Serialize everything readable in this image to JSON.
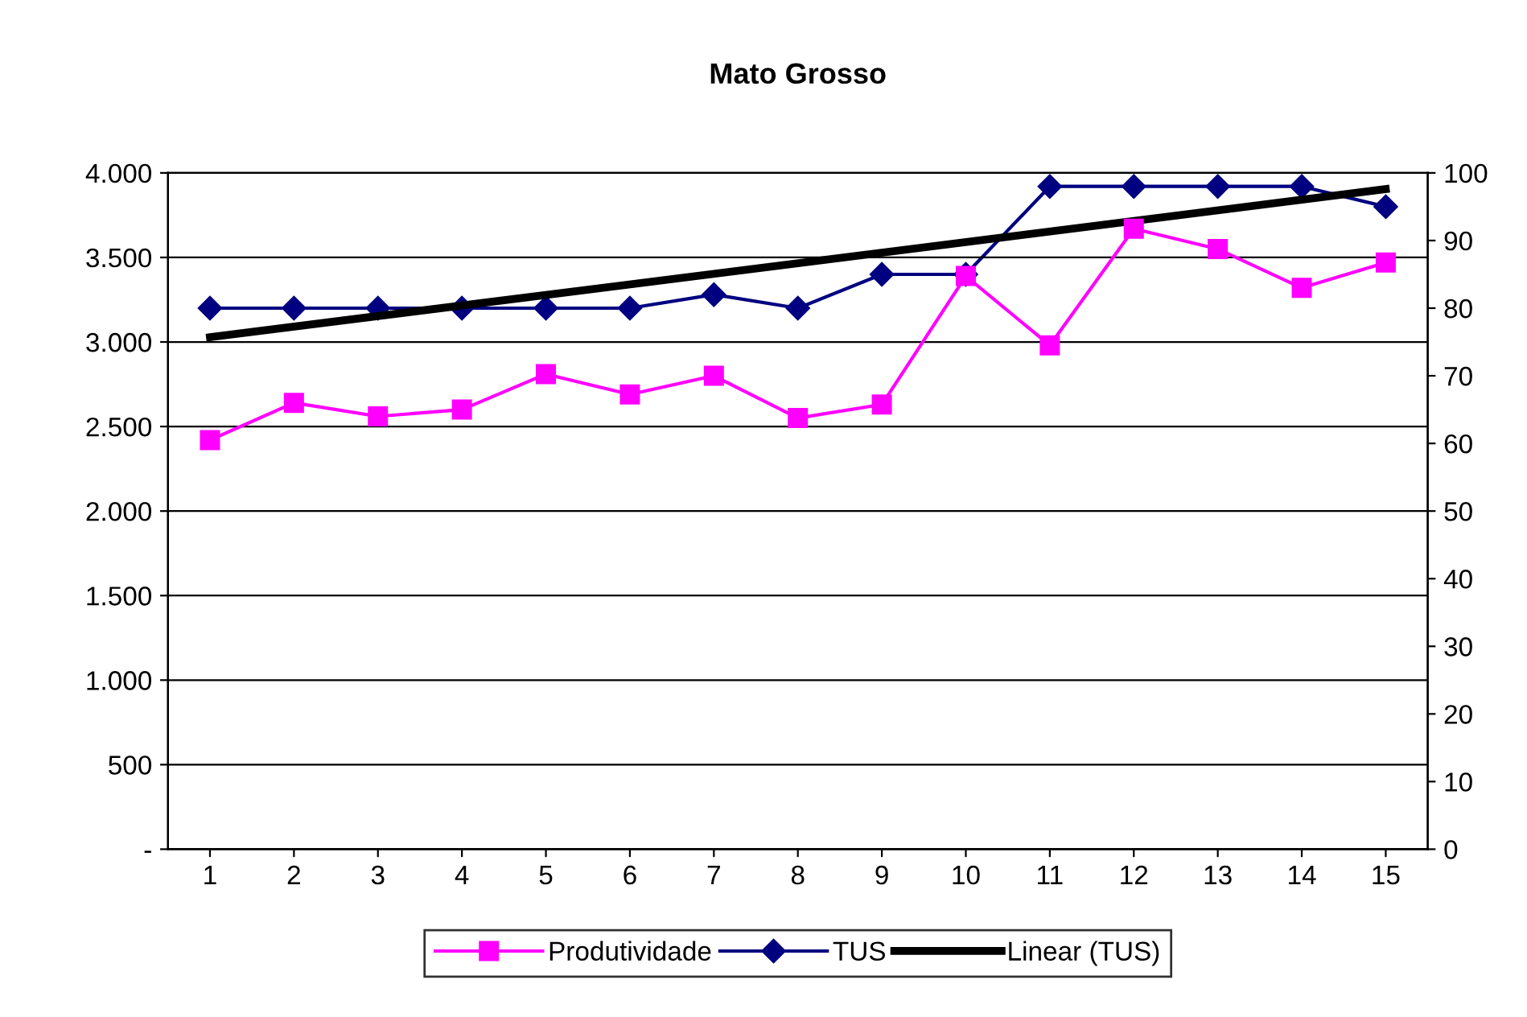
{
  "chart_data": {
    "type": "line",
    "title": "Mato Grosso",
    "x": [
      1,
      2,
      3,
      4,
      5,
      6,
      7,
      8,
      9,
      10,
      11,
      12,
      13,
      14,
      15
    ],
    "xlim": [
      0.5,
      15.5
    ],
    "xticks": [
      1,
      2,
      3,
      4,
      5,
      6,
      7,
      8,
      9,
      10,
      11,
      12,
      13,
      14,
      15
    ],
    "ylim": [
      0,
      4000
    ],
    "yticks": [
      {
        "value": 0,
        "label": "-"
      },
      {
        "value": 500,
        "label": "500"
      },
      {
        "value": 1000,
        "label": "1.000"
      },
      {
        "value": 1500,
        "label": "1.500"
      },
      {
        "value": 2000,
        "label": "2.000"
      },
      {
        "value": 2500,
        "label": "2.500"
      },
      {
        "value": 3000,
        "label": "3.000"
      },
      {
        "value": 3500,
        "label": "3.500"
      },
      {
        "value": 4000,
        "label": "4.000"
      }
    ],
    "y2lim": [
      0,
      100
    ],
    "y2ticks": [
      0,
      10,
      20,
      30,
      40,
      50,
      60,
      70,
      80,
      90,
      100
    ],
    "grid": "y",
    "legend": "bottom",
    "series": [
      {
        "name": "Produtividade",
        "color": "#ff00ff",
        "marker": "square",
        "values": [
          2420,
          2640,
          2560,
          2600,
          2810,
          2690,
          2800,
          2550,
          2630,
          3390,
          2980,
          3670,
          3550,
          3320,
          3470
        ]
      },
      {
        "name": "TUS",
        "color": "#000080",
        "marker": "diamond",
        "axis": "y2",
        "values": [
          80,
          80,
          80,
          80,
          80,
          80,
          82,
          80,
          85,
          85,
          98,
          98,
          98,
          98,
          95
        ]
      },
      {
        "name": "Linear (TUS)",
        "color": "#000000",
        "marker": "none",
        "axis": "y2",
        "x": [
          1,
          15
        ],
        "values": [
          75.7,
          97.6
        ]
      }
    ]
  }
}
